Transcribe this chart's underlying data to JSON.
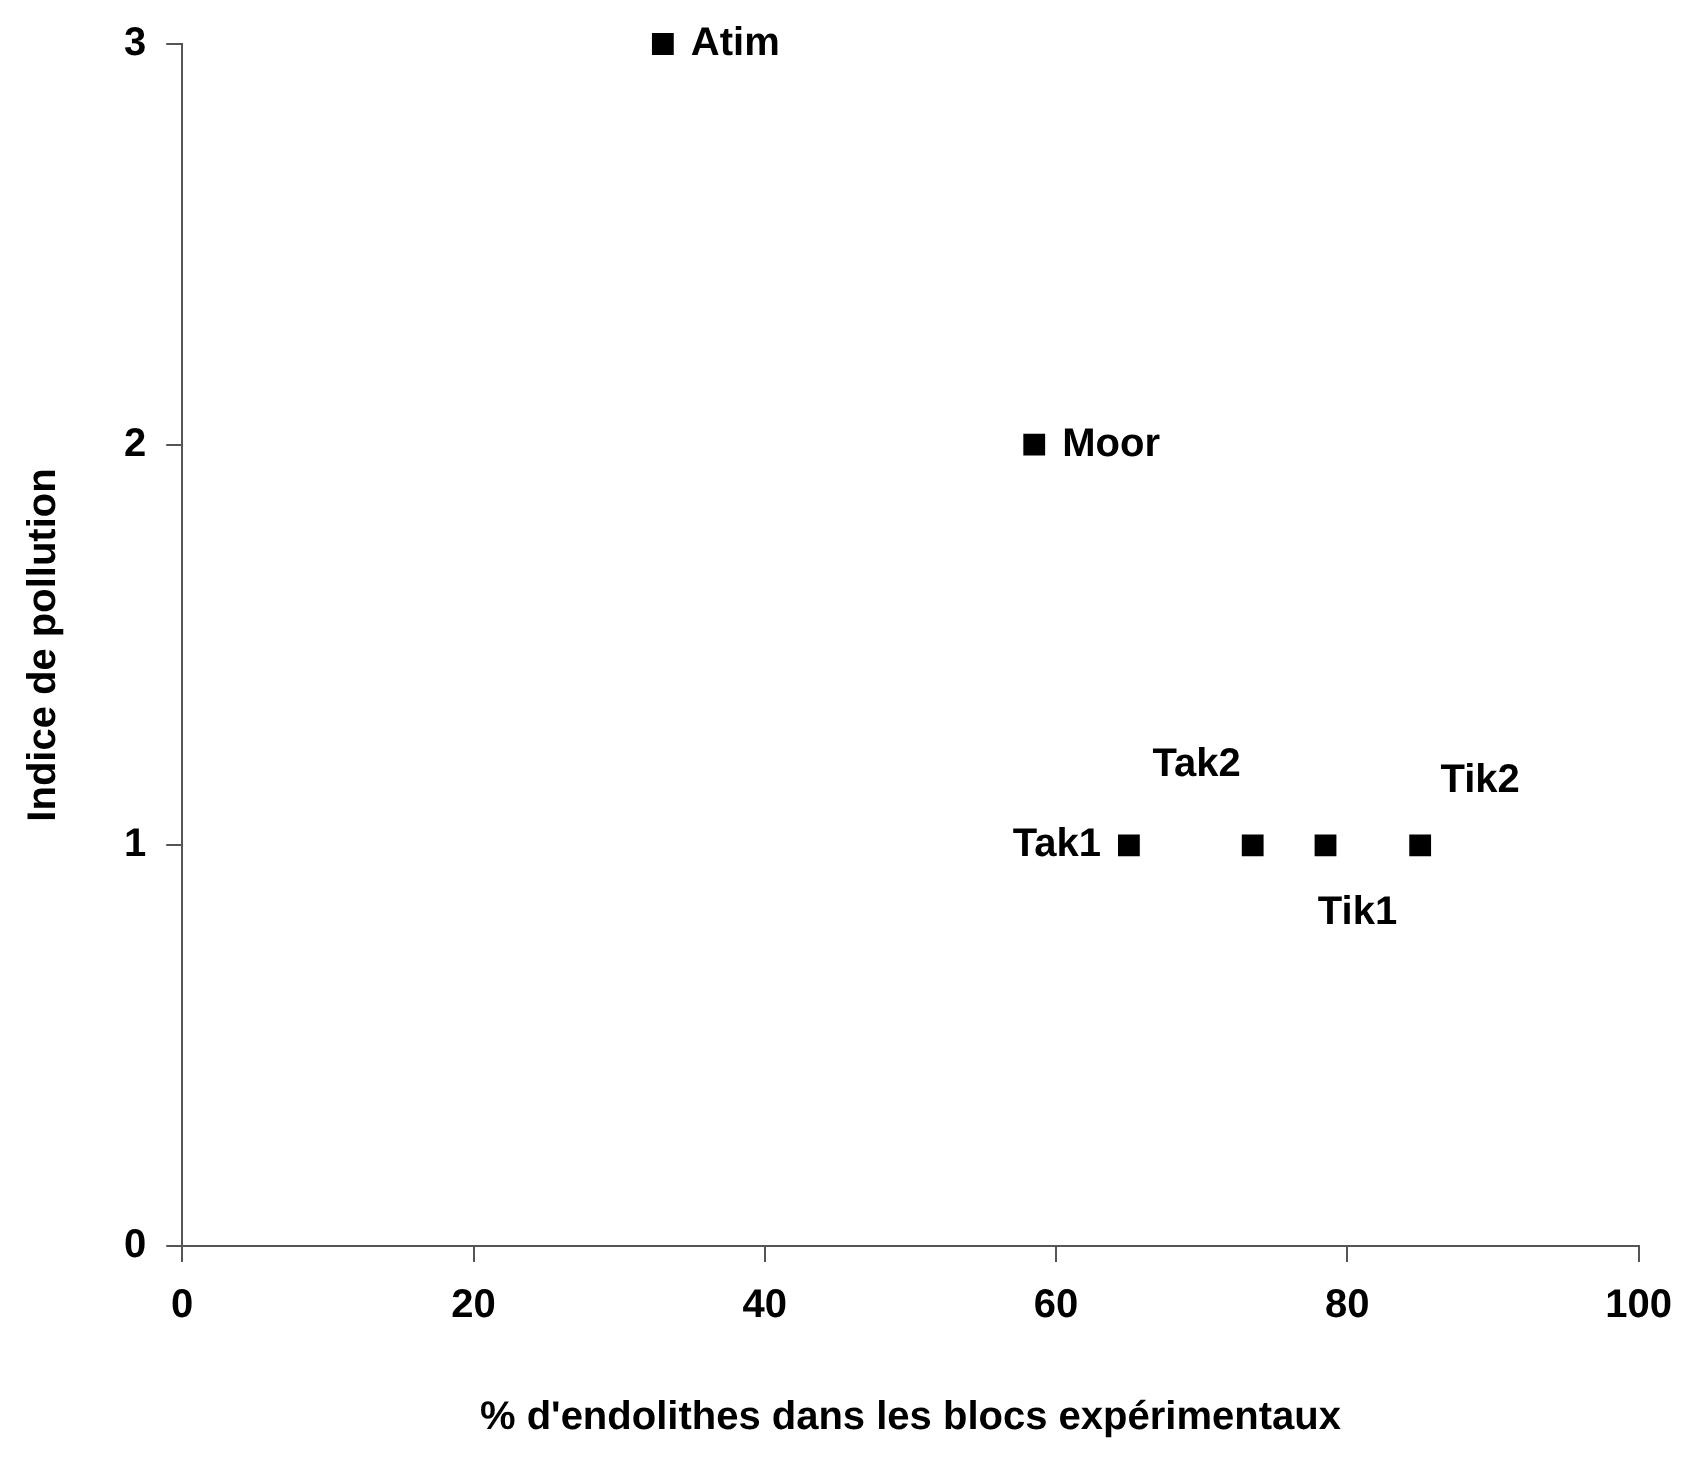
{
  "chart_data": {
    "type": "scatter",
    "xlabel": "% d'endolithes dans les blocs expérimentaux",
    "ylabel": "Indice de pollution",
    "series": [
      {
        "color": "#000000",
        "x": [
          33,
          58.5,
          65,
          73.5,
          78.5,
          85
        ],
        "values": [
          3,
          2,
          1,
          1,
          1,
          1
        ]
      }
    ],
    "xlim": [
      0,
      100
    ],
    "xticks": [
      0,
      20,
      40,
      60,
      80,
      100
    ],
    "ylim": [
      0,
      3
    ],
    "yticks": [
      0,
      1,
      2,
      3
    ],
    "grid": false,
    "legend": false,
    "marker": "square",
    "annotations": [
      {
        "text": "Atim",
        "x": 33,
        "y": 3
      },
      {
        "text": "Moor",
        "x": 58.5,
        "y": 2
      },
      {
        "text": "Tak1",
        "x": 65,
        "y": 1
      },
      {
        "text": "Tak2",
        "x": 73.5,
        "y": 1
      },
      {
        "text": "Tik1",
        "x": 78.5,
        "y": 1
      },
      {
        "text": "Tik2",
        "x": 85,
        "y": 1
      }
    ]
  }
}
